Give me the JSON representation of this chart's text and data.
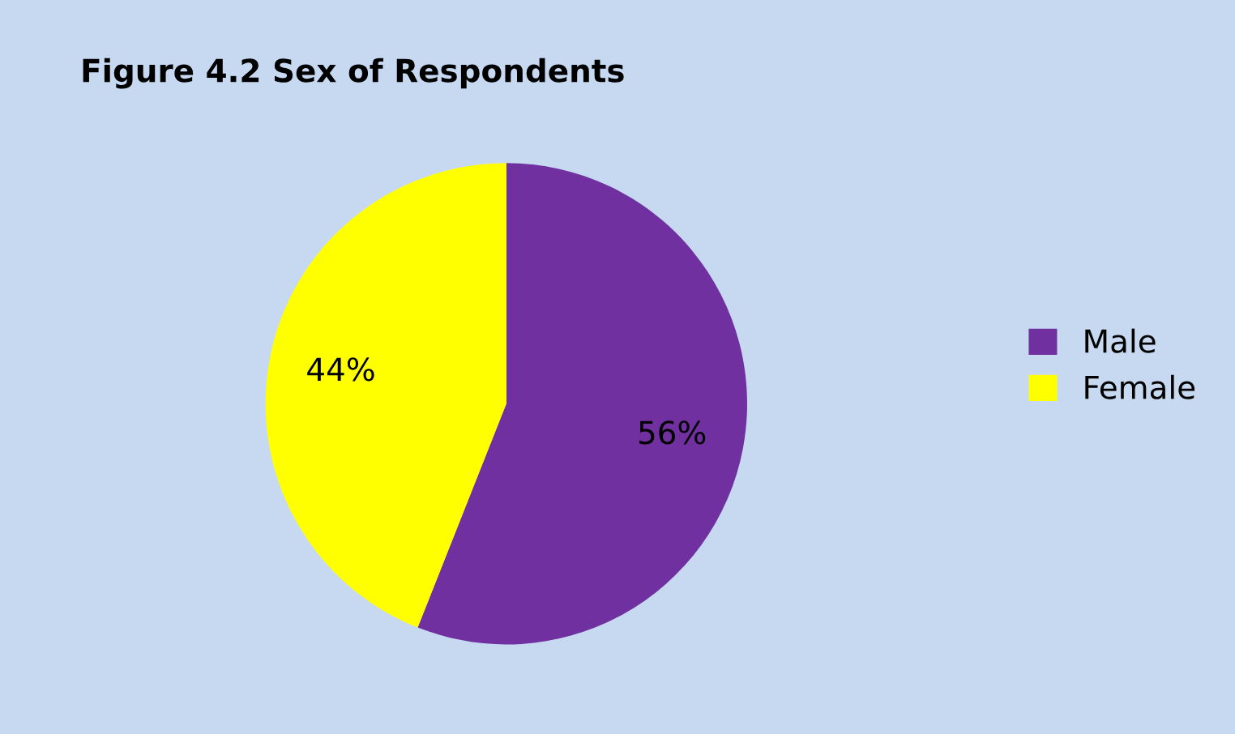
{
  "chart_data": {
    "type": "pie",
    "title": "Figure 4.2 Sex of Respondents",
    "categories": [
      "Male",
      "Female"
    ],
    "values": [
      56,
      44
    ],
    "colors": [
      "#7030a0",
      "#ffff00"
    ],
    "value_labels": [
      "56%",
      "44%"
    ],
    "legend": "right"
  }
}
